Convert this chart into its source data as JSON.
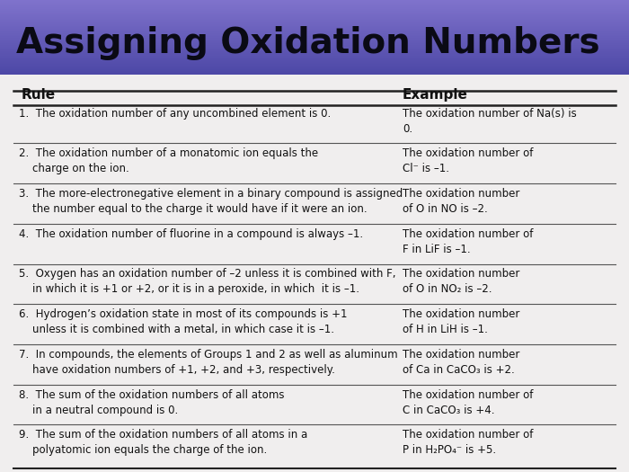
{
  "title": "Assigning Oxidation Numbers",
  "title_fontsize": 28,
  "title_color": "#0a0a14",
  "table_bg": "#f0eeee",
  "col_header_fontsize": 11,
  "row_fontsize": 8.5,
  "rule_col": "Rule",
  "example_col": "Example",
  "rows": [
    {
      "rule": "1.  The oxidation number of any uncombined element is 0.",
      "example": "The oxidation number of Na(s) is\n0."
    },
    {
      "rule": "2.  The oxidation number of a monatomic ion equals the\n    charge on the ion.",
      "example": "The oxidation number of\nCl⁻ is –1."
    },
    {
      "rule": "3.  The more-electronegative element in a binary compound is assigned\n    the number equal to the charge it would have if it were an ion.",
      "example": "The oxidation number\nof O in NO is –2."
    },
    {
      "rule": "4.  The oxidation number of fluorine in a compound is always –1.",
      "example": "The oxidation number of\nF in LiF is –1."
    },
    {
      "rule": "5.  Oxygen has an oxidation number of –2 unless it is combined with F,\n    in which it is +1 or +2, or it is in a peroxide, in which  it is –1.",
      "example": "The oxidation number\nof O in NO₂ is –2."
    },
    {
      "rule": "6.  Hydrogen’s oxidation state in most of its compounds is +1\n    unless it is combined with a metal, in which case it is –1.",
      "example": "The oxidation number\nof H in LiH is –1."
    },
    {
      "rule": "7.  In compounds, the elements of Groups 1 and 2 as well as aluminum\n    have oxidation numbers of +1, +2, and +3, respectively.",
      "example": "The oxidation number\nof Ca in CaCO₃ is +2."
    },
    {
      "rule": "8.  The sum of the oxidation numbers of all atoms\n    in a neutral compound is 0.",
      "example": "The oxidation number of\nC in CaCO₃ is +4."
    },
    {
      "rule": "9.  The sum of the oxidation numbers of all atoms in a\n    polyatomic ion equals the charge of the ion.",
      "example": "The oxidation number of\nP in H₂PO₄⁻ is +5."
    }
  ]
}
